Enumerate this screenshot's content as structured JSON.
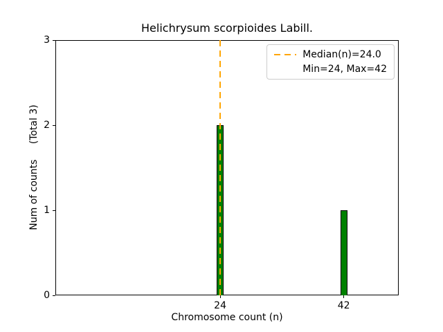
{
  "chart_data": {
    "type": "bar",
    "title": "Helichrysum scorpioides Labill.",
    "xlabel": "Chromosome count (n)",
    "ylabel": "Num of counts     (Total 3)",
    "x": [
      24,
      42
    ],
    "counts": [
      2,
      1
    ],
    "total": 3,
    "median": 24.0,
    "min": 24,
    "max": 42,
    "xlim": [
      0,
      50
    ],
    "ylim": [
      0,
      3
    ],
    "xticks": [
      24,
      42
    ],
    "yticks": [
      0,
      1,
      2,
      3
    ],
    "bar_width_units": 1.0,
    "grid": false,
    "legend_position": "upper right",
    "legend": {
      "median_label": "Median(n)=24.0",
      "minmax_label": "Min=24, Max=42"
    },
    "colors": {
      "bar_fill": "#008000",
      "bar_edge": "#000000",
      "median_line": "#FFA500",
      "legend_border": "#cccccc",
      "axis": "#000000",
      "text": "#000000"
    }
  }
}
